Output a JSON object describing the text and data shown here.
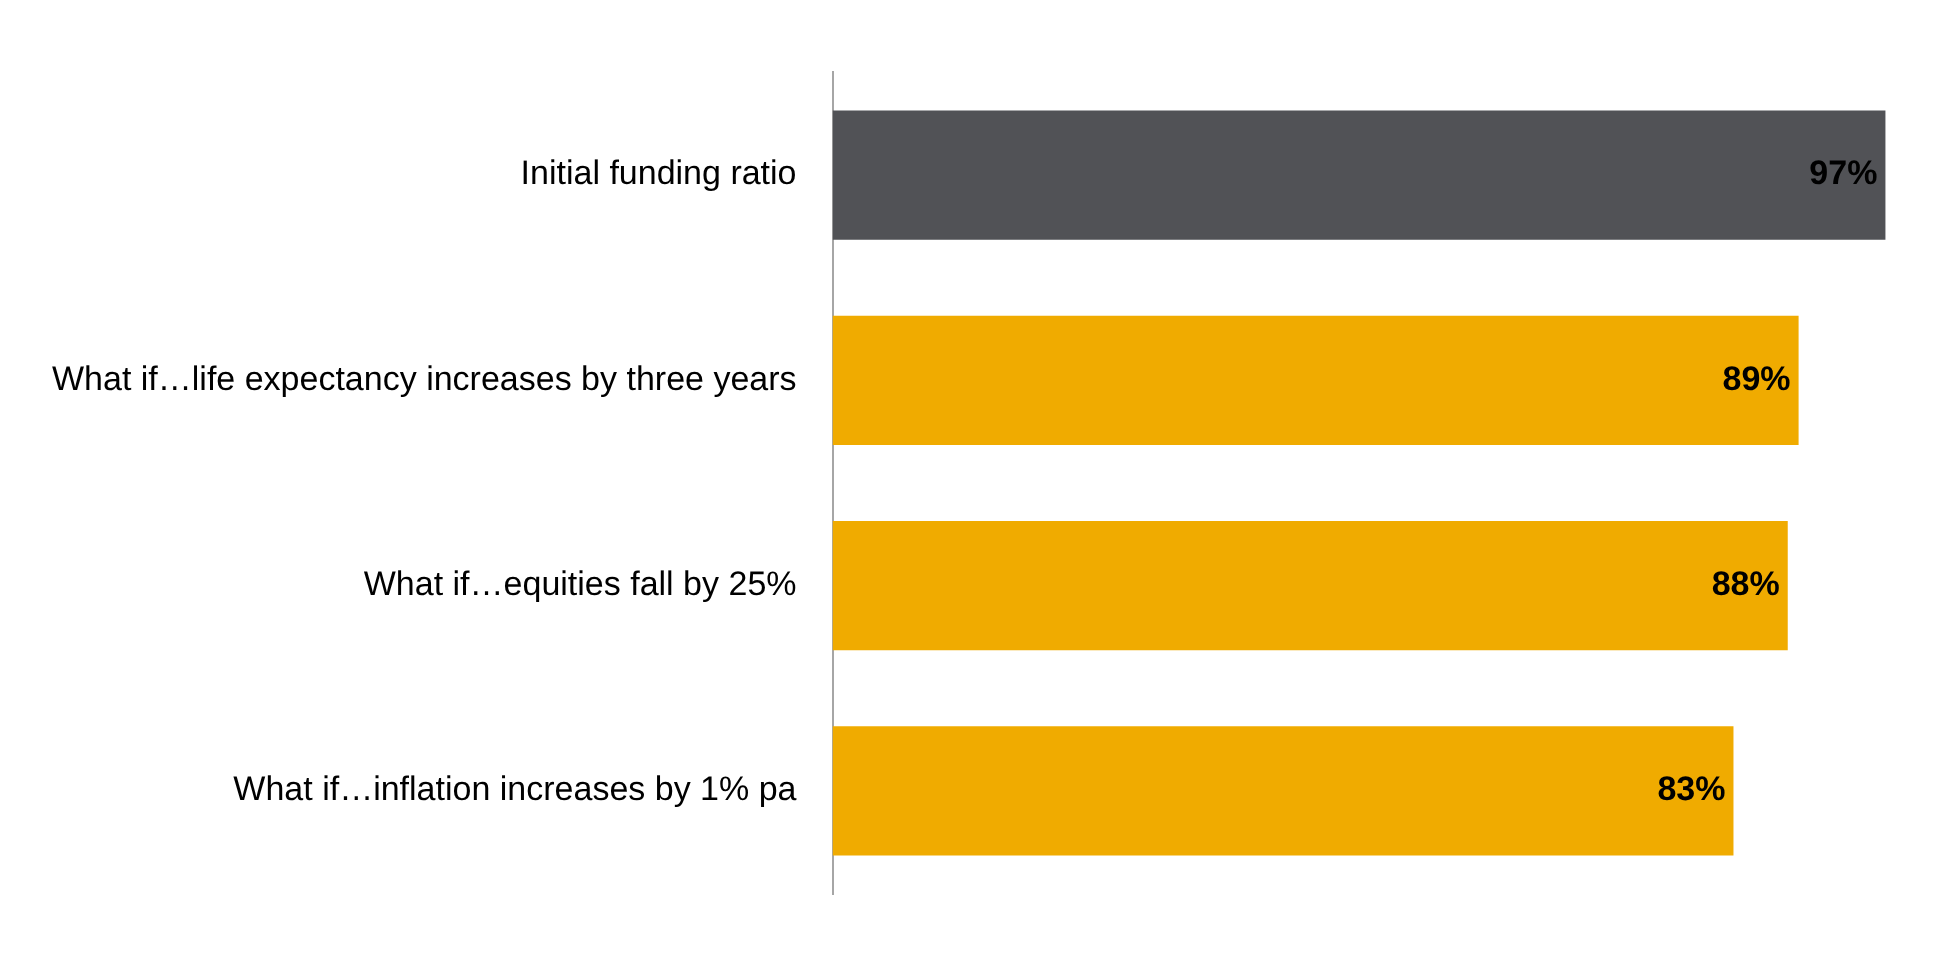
{
  "chart_data": {
    "type": "bar",
    "orientation": "horizontal",
    "categories": [
      "Initial funding ratio",
      "What if…life expectancy increases by three years",
      "What if…equities fall by 25%",
      "What if…inflation increases by 1% pa"
    ],
    "values": [
      97,
      89,
      88,
      83
    ],
    "colors": [
      "#515256",
      "#f0ab00",
      "#f0ab00",
      "#f0ab00"
    ],
    "value_labels": [
      "97%",
      "89%",
      "88%",
      "83%"
    ],
    "tick_labels": "y",
    "legend": false
  }
}
